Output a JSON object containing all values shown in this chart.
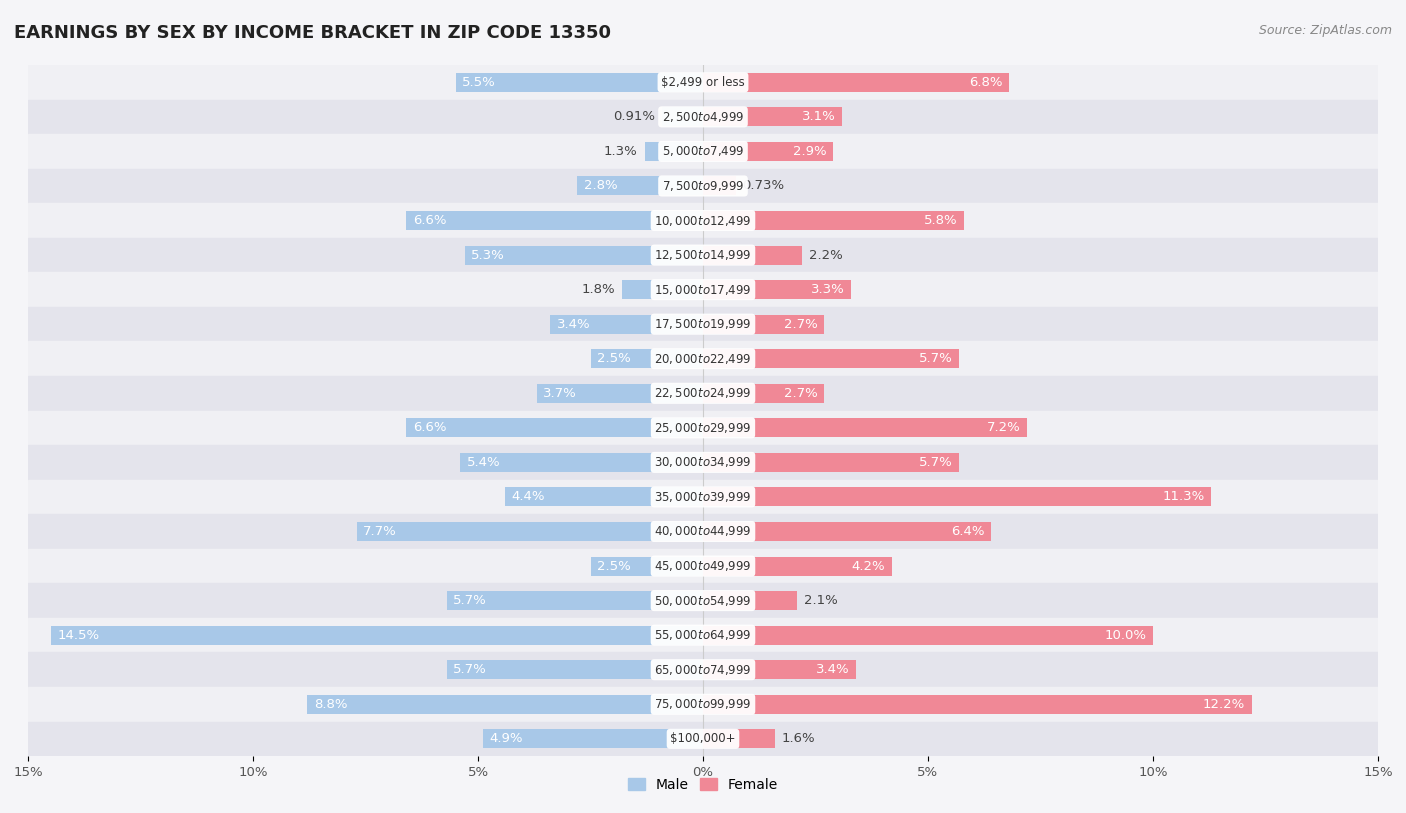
{
  "title": "EARNINGS BY SEX BY INCOME BRACKET IN ZIP CODE 13350",
  "source": "Source: ZipAtlas.com",
  "categories": [
    "$2,499 or less",
    "$2,500 to $4,999",
    "$5,000 to $7,499",
    "$7,500 to $9,999",
    "$10,000 to $12,499",
    "$12,500 to $14,999",
    "$15,000 to $17,499",
    "$17,500 to $19,999",
    "$20,000 to $22,499",
    "$22,500 to $24,999",
    "$25,000 to $29,999",
    "$30,000 to $34,999",
    "$35,000 to $39,999",
    "$40,000 to $44,999",
    "$45,000 to $49,999",
    "$50,000 to $54,999",
    "$55,000 to $64,999",
    "$65,000 to $74,999",
    "$75,000 to $99,999",
    "$100,000+"
  ],
  "male_values": [
    5.5,
    0.91,
    1.3,
    2.8,
    6.6,
    5.3,
    1.8,
    3.4,
    2.5,
    3.7,
    6.6,
    5.4,
    4.4,
    7.7,
    2.5,
    5.7,
    14.5,
    5.7,
    8.8,
    4.9
  ],
  "female_values": [
    6.8,
    3.1,
    2.9,
    0.73,
    5.8,
    2.2,
    3.3,
    2.7,
    5.7,
    2.7,
    7.2,
    5.7,
    11.3,
    6.4,
    4.2,
    2.1,
    10.0,
    3.4,
    12.2,
    1.6
  ],
  "male_color": "#a8c8e8",
  "female_color": "#f08896",
  "row_colors": [
    "#f0f0f4",
    "#e4e4ec"
  ],
  "background_color": "#f5f5f8",
  "xlim": 15.0,
  "bar_height": 0.55,
  "title_fontsize": 13,
  "label_fontsize": 9.5,
  "tick_fontsize": 9.5,
  "category_fontsize": 8.5,
  "source_fontsize": 9
}
